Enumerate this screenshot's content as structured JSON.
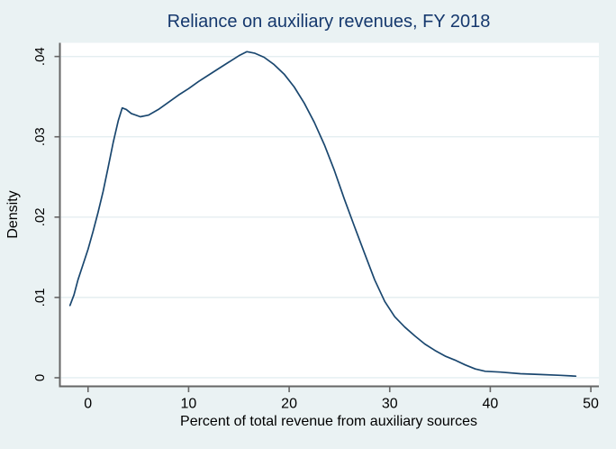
{
  "figure": {
    "background_color": "#eaf2f3",
    "plot_background_color": "#ffffff",
    "grid_color": "#e4eef0",
    "axis_color": "#666666",
    "title_color": "#15386d",
    "line_color": "#1a476f"
  },
  "chart_data": {
    "type": "line",
    "subtype": "kernel-density",
    "title": "Reliance on auxiliary revenues, FY 2018",
    "xlabel": "Percent of total revenue from auxiliary sources",
    "ylabel": "Density",
    "legend": "none",
    "grid": "horizontal",
    "xlim": [
      -2.8,
      50.8
    ],
    "ylim": [
      -0.00107,
      0.0417
    ],
    "x_ticks": [
      {
        "value": 0,
        "label": "0"
      },
      {
        "value": 10,
        "label": "10"
      },
      {
        "value": 20,
        "label": "20"
      },
      {
        "value": 30,
        "label": "30"
      },
      {
        "value": 40,
        "label": "40"
      },
      {
        "value": 50,
        "label": "50"
      }
    ],
    "y_ticks": [
      {
        "value": 0.0,
        "label": "0"
      },
      {
        "value": 0.01,
        "label": ".01"
      },
      {
        "value": 0.02,
        "label": ".02"
      },
      {
        "value": 0.03,
        "label": ".03"
      },
      {
        "value": 0.04,
        "label": ".04"
      }
    ],
    "series": [
      {
        "name": "density",
        "color": "#1a476f",
        "points": [
          [
            -1.8,
            0.009
          ],
          [
            -1.4,
            0.0103
          ],
          [
            -1.0,
            0.0122
          ],
          [
            -0.5,
            0.0141
          ],
          [
            0.0,
            0.016
          ],
          [
            0.5,
            0.0182
          ],
          [
            1.0,
            0.0206
          ],
          [
            1.5,
            0.0232
          ],
          [
            2.0,
            0.0262
          ],
          [
            2.5,
            0.0293
          ],
          [
            3.0,
            0.032
          ],
          [
            3.4,
            0.0336
          ],
          [
            3.8,
            0.0334
          ],
          [
            4.3,
            0.0329
          ],
          [
            5.2,
            0.0325
          ],
          [
            6.0,
            0.0327
          ],
          [
            7.0,
            0.0334
          ],
          [
            8.0,
            0.0343
          ],
          [
            9.0,
            0.0352
          ],
          [
            10.0,
            0.036
          ],
          [
            11.0,
            0.0369
          ],
          [
            12.0,
            0.0377
          ],
          [
            13.0,
            0.0385
          ],
          [
            14.0,
            0.0393
          ],
          [
            15.0,
            0.0401
          ],
          [
            15.8,
            0.0406
          ],
          [
            16.6,
            0.0404
          ],
          [
            17.5,
            0.0399
          ],
          [
            18.5,
            0.039
          ],
          [
            19.5,
            0.0378
          ],
          [
            20.5,
            0.0362
          ],
          [
            21.5,
            0.0342
          ],
          [
            22.5,
            0.0318
          ],
          [
            23.5,
            0.029
          ],
          [
            24.5,
            0.0258
          ],
          [
            25.5,
            0.0222
          ],
          [
            26.5,
            0.0188
          ],
          [
            27.5,
            0.0155
          ],
          [
            28.5,
            0.0122
          ],
          [
            29.5,
            0.0095
          ],
          [
            30.5,
            0.0076
          ],
          [
            31.5,
            0.0063
          ],
          [
            32.5,
            0.0052
          ],
          [
            33.5,
            0.0042
          ],
          [
            34.5,
            0.0034
          ],
          [
            35.5,
            0.0027
          ],
          [
            36.5,
            0.0022
          ],
          [
            37.5,
            0.0016
          ],
          [
            38.5,
            0.0011
          ],
          [
            39.5,
            0.0008
          ],
          [
            41.0,
            0.0007
          ],
          [
            43.0,
            0.0005
          ],
          [
            45.0,
            0.0004
          ],
          [
            47.0,
            0.0003
          ],
          [
            48.5,
            0.0002
          ]
        ]
      }
    ]
  }
}
